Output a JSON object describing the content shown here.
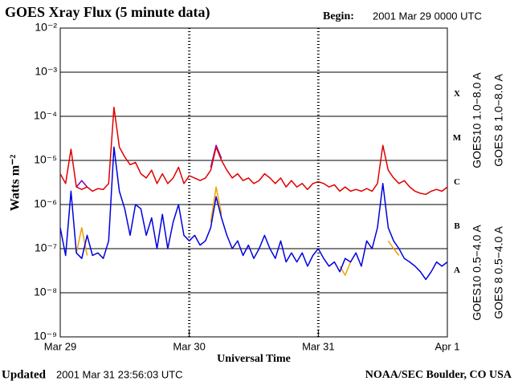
{
  "chart_data": {
    "type": "line",
    "title": "GOES Xray Flux (5 minute data)",
    "begin_label": "Begin:",
    "begin_time": "2001 Mar 29 0000 UTC",
    "ylabel": "Watts m⁻²",
    "xlabel": "Universal Time",
    "updated_label": "Updated",
    "updated_time": "2001 Mar 31 23:56:03 UTC",
    "credit": "NOAA/SEC Boulder, CO USA",
    "log_y": true,
    "grid": true,
    "xlim": [
      0,
      72
    ],
    "xticks": [
      {
        "value": 0,
        "label": "Mar 29"
      },
      {
        "value": 24,
        "label": "Mar 30"
      },
      {
        "value": 48,
        "label": "Mar 31"
      },
      {
        "value": 72,
        "label": "Apr 1"
      }
    ],
    "ylim": [
      1e-09,
      0.01
    ],
    "yticks": [
      {
        "value": 1e-09,
        "label": "10⁻⁹"
      },
      {
        "value": 1e-08,
        "label": "10⁻⁸"
      },
      {
        "value": 1e-07,
        "label": "10⁻⁷"
      },
      {
        "value": 1e-06,
        "label": "10⁻⁶"
      },
      {
        "value": 1e-05,
        "label": "10⁻⁵"
      },
      {
        "value": 0.0001,
        "label": "10⁻⁴"
      },
      {
        "value": 0.001,
        "label": "10⁻³"
      },
      {
        "value": 0.01,
        "label": "10⁻²"
      }
    ],
    "flare_classes": [
      {
        "label": "A",
        "value": 1e-08
      },
      {
        "label": "B",
        "value": 1e-07
      },
      {
        "label": "C",
        "value": 1e-06
      },
      {
        "label": "M",
        "value": 1e-05
      },
      {
        "label": "X",
        "value": 0.0001
      }
    ],
    "x": [
      0,
      1,
      2,
      3,
      4,
      5,
      6,
      7,
      8,
      9,
      10,
      11,
      12,
      13,
      14,
      15,
      16,
      17,
      18,
      19,
      20,
      21,
      22,
      23,
      24,
      25,
      26,
      27,
      28,
      29,
      30,
      31,
      32,
      33,
      34,
      35,
      36,
      37,
      38,
      39,
      40,
      41,
      42,
      43,
      44,
      45,
      46,
      47,
      48,
      49,
      50,
      51,
      52,
      53,
      54,
      55,
      56,
      57,
      58,
      59,
      60,
      61,
      62,
      63,
      64,
      65,
      66,
      67,
      68,
      69,
      70,
      71,
      72
    ],
    "series": [
      {
        "name": "GOES10 1.0−8.0 A",
        "color": "#7a00c8",
        "values": [
          null,
          null,
          null,
          2.5e-06,
          3.5e-06,
          2.5e-06,
          null,
          null,
          null,
          null,
          null,
          null,
          null,
          null,
          null,
          null,
          null,
          null,
          null,
          null,
          null,
          null,
          null,
          null,
          null,
          null,
          null,
          null,
          7e-06,
          2.2e-05,
          1.1e-05,
          null,
          null,
          null,
          null,
          null,
          null,
          null,
          null,
          null,
          null,
          null,
          null,
          null,
          null,
          null,
          null,
          null,
          null,
          null,
          null,
          null,
          null,
          null,
          null,
          null,
          null,
          null,
          null,
          null,
          null,
          null,
          null,
          null,
          null,
          null,
          null,
          null,
          null,
          null,
          null,
          null,
          null
        ]
      },
      {
        "name": "GOES 8 1.0−8.0 A",
        "color": "#e00000",
        "values": [
          5e-06,
          3e-06,
          1.8e-05,
          2.5e-06,
          2.2e-06,
          2.5e-06,
          2e-06,
          2.3e-06,
          2.2e-06,
          3e-06,
          0.00016,
          2e-05,
          1.2e-05,
          8e-06,
          9e-06,
          5e-06,
          4e-06,
          6e-06,
          3e-06,
          5e-06,
          3e-06,
          4e-06,
          7e-06,
          3e-06,
          4.5e-06,
          4e-06,
          3.5e-06,
          4e-06,
          6e-06,
          2e-05,
          1e-05,
          6e-06,
          4e-06,
          5e-06,
          3.5e-06,
          4e-06,
          3e-06,
          3.5e-06,
          5e-06,
          4e-06,
          3e-06,
          4e-06,
          2.5e-06,
          3.5e-06,
          2.5e-06,
          3e-06,
          2.2e-06,
          3e-06,
          3.3e-06,
          3e-06,
          2.5e-06,
          2.8e-06,
          2e-06,
          2.5e-06,
          2e-06,
          2.2e-06,
          2e-06,
          2.3e-06,
          2e-06,
          3e-06,
          2.2e-05,
          6e-06,
          4e-06,
          3e-06,
          3.5e-06,
          2.5e-06,
          2e-06,
          1.8e-06,
          1.7e-06,
          2e-06,
          2.2e-06,
          2e-06,
          2.5e-06
        ]
      },
      {
        "name": "GOES10 0.5−4.0 A",
        "color": "#f0a000",
        "values": [
          null,
          null,
          null,
          8e-08,
          3e-07,
          7e-08,
          null,
          null,
          null,
          null,
          null,
          null,
          null,
          null,
          null,
          null,
          null,
          null,
          null,
          null,
          null,
          null,
          null,
          null,
          null,
          null,
          null,
          null,
          4e-07,
          2.5e-06,
          6e-07,
          null,
          null,
          null,
          null,
          null,
          null,
          null,
          null,
          null,
          null,
          null,
          null,
          null,
          null,
          null,
          null,
          null,
          null,
          null,
          null,
          null,
          4e-08,
          2.5e-08,
          5e-08,
          null,
          null,
          null,
          null,
          null,
          null,
          1.5e-07,
          1e-07,
          7e-08,
          null,
          null,
          null,
          null,
          null,
          null,
          null,
          null,
          null
        ]
      },
      {
        "name": "GOES 8 0.5−4.0 A",
        "color": "#0000e0",
        "values": [
          3e-07,
          7e-08,
          2e-06,
          8e-08,
          6e-08,
          2e-07,
          7e-08,
          8e-08,
          6e-08,
          1.5e-07,
          2e-05,
          2e-06,
          8e-07,
          2e-07,
          1e-06,
          8e-07,
          2e-07,
          5e-07,
          1e-07,
          6e-07,
          1e-07,
          4e-07,
          1e-06,
          2e-07,
          1.5e-07,
          2e-07,
          1.2e-07,
          1.5e-07,
          3e-07,
          1.5e-06,
          5e-07,
          2e-07,
          1e-07,
          1.5e-07,
          7e-08,
          1.2e-07,
          6e-08,
          1e-07,
          2e-07,
          1e-07,
          6e-08,
          1.5e-07,
          5e-08,
          8e-08,
          5e-08,
          8e-08,
          4e-08,
          7e-08,
          1e-07,
          6e-08,
          4e-08,
          5e-08,
          3e-08,
          6e-08,
          5e-08,
          8e-08,
          4e-08,
          1.5e-07,
          1e-07,
          3e-07,
          3e-06,
          3e-07,
          1.5e-07,
          1e-07,
          6e-08,
          5e-08,
          4e-08,
          3e-08,
          2e-08,
          3e-08,
          5e-08,
          4e-08,
          5e-08
        ]
      }
    ]
  }
}
